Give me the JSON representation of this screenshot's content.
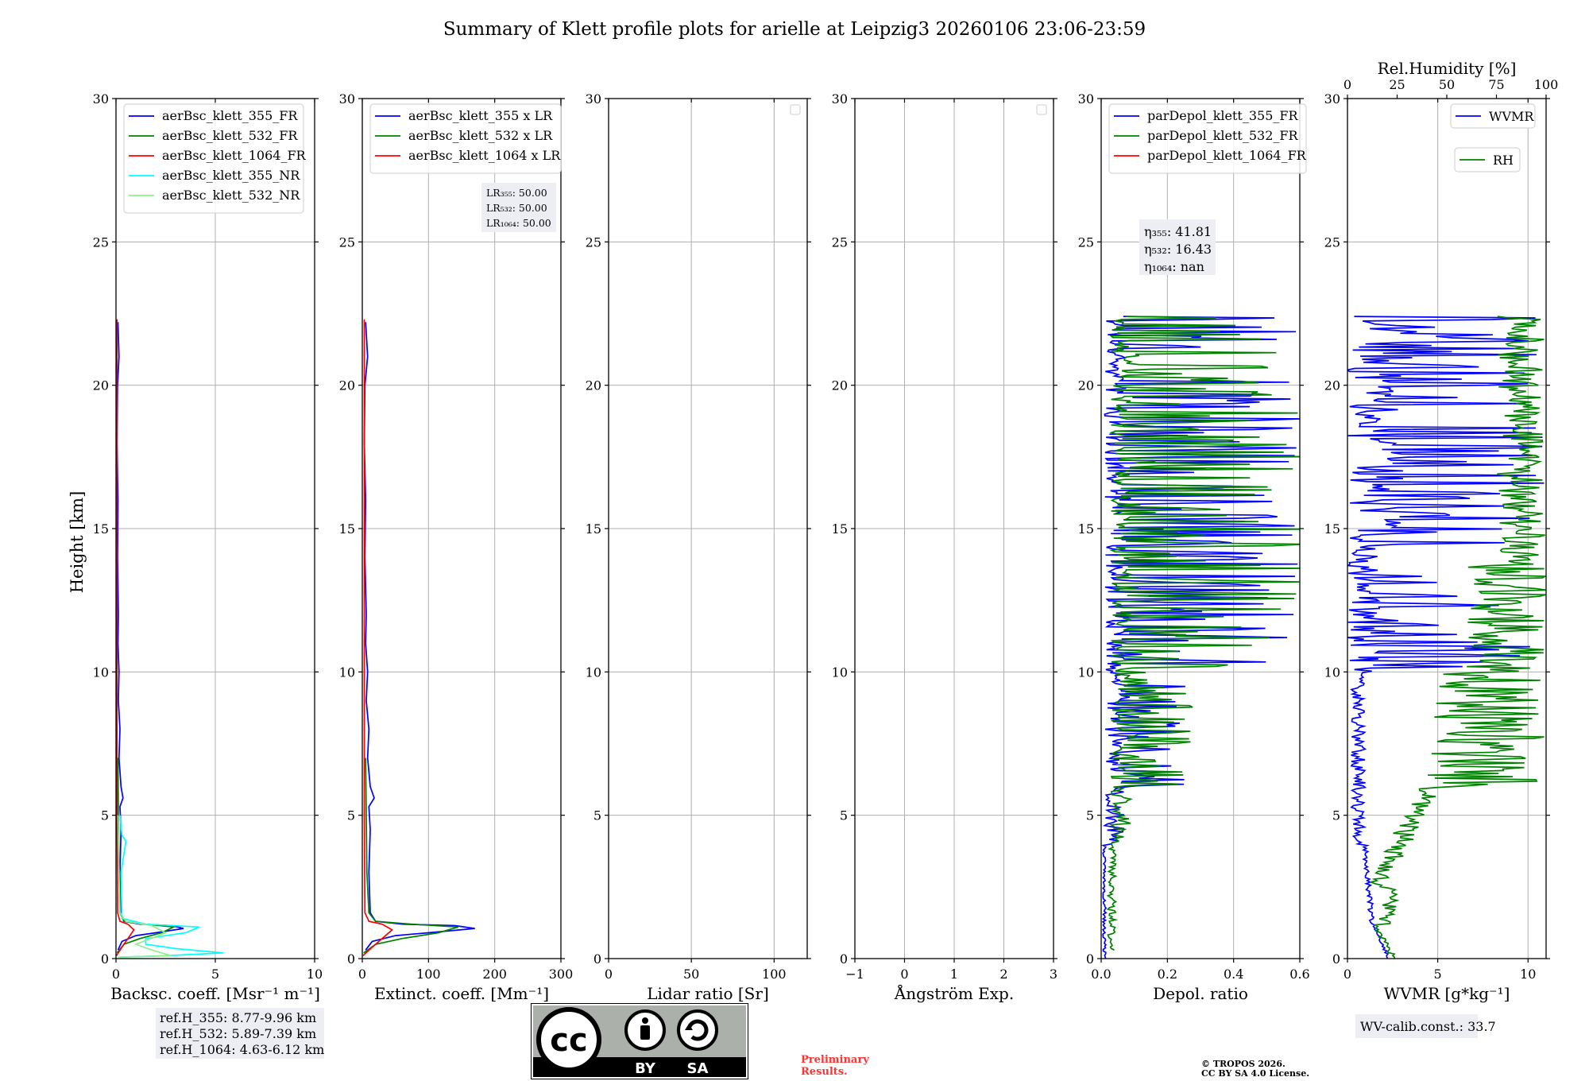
{
  "figure": {
    "title": "Summary of Klett profile plots for arielle at Leipzig3 20260106 23:06-23:59",
    "ylabel": "Height [km]",
    "preliminary_line1": "Preliminary",
    "preliminary_line2": "Results.",
    "copyright_line1": "© TROPOS 2026.",
    "copyright_line2": "CC BY SA 4.0 License.",
    "license_by": "BY",
    "license_sa": "SA",
    "license_cc": "cc",
    "colors": {
      "blue": "#0000ff",
      "green": "#008000",
      "red": "#ff0000",
      "cyan": "#00ffff",
      "lightgreen": "#90ee90",
      "grid": "#b0b0b0",
      "prelim": "#ff3333"
    }
  },
  "chart_data": [
    {
      "type": "line",
      "id": "bsc",
      "xlabel": "Backsc. coeff. [Msr⁻¹ m⁻¹]",
      "ylabel": "Height [km]",
      "xlim": [
        0,
        10
      ],
      "ylim": [
        0,
        30
      ],
      "xticks": [
        0,
        5,
        10
      ],
      "yticks": [
        0,
        5,
        10,
        15,
        20,
        25,
        30
      ],
      "legend": [
        "aerBsc_klett_355_FR",
        "aerBsc_klett_532_FR",
        "aerBsc_klett_1064_FR",
        "aerBsc_klett_355_NR",
        "aerBsc_klett_532_NR"
      ],
      "reference_heights": [
        "ref.H_355: 8.77-9.96 km",
        "ref.H_532: 5.89-7.39 km",
        "ref.H_1064: 4.63-6.12 km"
      ],
      "series": [
        {
          "name": "aerBsc_klett_355_FR",
          "color": "blue",
          "points": [
            [
              0.1,
              0.3
            ],
            [
              0.3,
              0.6
            ],
            [
              1.0,
              0.8
            ],
            [
              2.0,
              0.9
            ],
            [
              3.4,
              1.05
            ],
            [
              2.8,
              1.15
            ],
            [
              1.2,
              1.2
            ],
            [
              0.4,
              1.3
            ],
            [
              0.25,
              1.6
            ],
            [
              0.2,
              3
            ],
            [
              0.25,
              4.5
            ],
            [
              0.2,
              5.3
            ],
            [
              0.35,
              5.6
            ],
            [
              0.25,
              6
            ],
            [
              0.15,
              7
            ],
            [
              0.2,
              8
            ],
            [
              0.12,
              9
            ],
            [
              0.15,
              10
            ],
            [
              0.1,
              11
            ],
            [
              0.12,
              12
            ],
            [
              0.08,
              14
            ],
            [
              0.1,
              16
            ],
            [
              0.05,
              18
            ],
            [
              0.08,
              20
            ],
            [
              0.15,
              21
            ],
            [
              0.1,
              22.2
            ]
          ]
        },
        {
          "name": "aerBsc_klett_532_FR",
          "color": "green",
          "points": [
            [
              0.05,
              0.2
            ],
            [
              0.4,
              0.5
            ],
            [
              1.2,
              0.7
            ],
            [
              2.3,
              0.9
            ],
            [
              2.9,
              1.1
            ],
            [
              1.5,
              1.2
            ],
            [
              0.4,
              1.3
            ],
            [
              0.2,
              1.6
            ],
            [
              0.15,
              3
            ],
            [
              0.12,
              5
            ],
            [
              0.1,
              7
            ]
          ]
        },
        {
          "name": "aerBsc_klett_1064_FR",
          "color": "red",
          "points": [
            [
              0.02,
              0.1
            ],
            [
              0.3,
              0.4
            ],
            [
              0.6,
              0.7
            ],
            [
              0.9,
              1.0
            ],
            [
              0.6,
              1.2
            ],
            [
              0.2,
              1.3
            ],
            [
              0.08,
              1.6
            ],
            [
              0.05,
              5
            ],
            [
              0.05,
              10
            ],
            [
              0.05,
              15
            ],
            [
              0.05,
              20
            ],
            [
              0.05,
              22.3
            ]
          ]
        },
        {
          "name": "aerBsc_klett_355_NR",
          "color": "cyan",
          "points": [
            [
              0.2,
              0.05
            ],
            [
              2.5,
              0.1
            ],
            [
              5.4,
              0.2
            ],
            [
              3.0,
              0.35
            ],
            [
              1.5,
              0.5
            ],
            [
              1.5,
              0.7
            ],
            [
              3.5,
              0.9
            ],
            [
              4.2,
              1.1
            ],
            [
              1.5,
              1.2
            ],
            [
              0.3,
              1.4
            ],
            [
              0.25,
              3
            ],
            [
              0.5,
              4.1
            ],
            [
              0.3,
              4.3
            ],
            [
              0.2,
              5
            ]
          ]
        },
        {
          "name": "aerBsc_klett_532_NR",
          "color": "lightgreen",
          "points": [
            [
              0.1,
              0.05
            ],
            [
              2.8,
              0.1
            ],
            [
              1.8,
              0.3
            ],
            [
              1.0,
              0.5
            ],
            [
              2.5,
              0.9
            ],
            [
              1.8,
              1.15
            ],
            [
              0.5,
              1.3
            ],
            [
              0.2,
              1.6
            ],
            [
              0.15,
              3
            ],
            [
              0.1,
              5
            ]
          ]
        }
      ]
    },
    {
      "type": "line",
      "id": "ext",
      "xlabel": "Extinct. coeff. [Mm⁻¹]",
      "xlim": [
        0,
        300
      ],
      "ylim": [
        0,
        30
      ],
      "xticks": [
        0,
        100,
        200,
        300
      ],
      "yticks": [
        0,
        5,
        10,
        15,
        20,
        25,
        30
      ],
      "legend": [
        "aerBsc_klett_355 x LR",
        "aerBsc_klett_532 x LR",
        "aerBsc_klett_1064 x LR"
      ],
      "lidar_ratio_box": [
        "LR₃₅₅: 50.00",
        "LR₅₃₂: 50.00",
        "LR₁₀₆₄: 50.00"
      ],
      "series": [
        {
          "name": "aerBsc_klett_355 x LR",
          "color": "blue",
          "points": [
            [
              5,
              0.3
            ],
            [
              15,
              0.6
            ],
            [
              50,
              0.8
            ],
            [
              100,
              0.9
            ],
            [
              170,
              1.05
            ],
            [
              140,
              1.15
            ],
            [
              60,
              1.2
            ],
            [
              20,
              1.3
            ],
            [
              12,
              1.6
            ],
            [
              10,
              3
            ],
            [
              12,
              4.5
            ],
            [
              10,
              5.3
            ],
            [
              18,
              5.6
            ],
            [
              12,
              6
            ],
            [
              8,
              7
            ],
            [
              10,
              8
            ],
            [
              6,
              9
            ],
            [
              8,
              10
            ],
            [
              5,
              11
            ],
            [
              6,
              12
            ],
            [
              4,
              14
            ],
            [
              5,
              16
            ],
            [
              3,
              18
            ],
            [
              4,
              20
            ],
            [
              8,
              21
            ],
            [
              5,
              22.2
            ]
          ]
        },
        {
          "name": "aerBsc_klett_532 x LR",
          "color": "green",
          "points": [
            [
              2,
              0.2
            ],
            [
              20,
              0.5
            ],
            [
              60,
              0.7
            ],
            [
              115,
              0.9
            ],
            [
              145,
              1.1
            ],
            [
              75,
              1.2
            ],
            [
              20,
              1.3
            ],
            [
              10,
              1.6
            ],
            [
              7,
              3
            ],
            [
              6,
              5
            ],
            [
              5,
              7
            ]
          ]
        },
        {
          "name": "aerBsc_klett_1064 x LR",
          "color": "red",
          "points": [
            [
              1,
              0.1
            ],
            [
              15,
              0.4
            ],
            [
              30,
              0.7
            ],
            [
              45,
              1.0
            ],
            [
              30,
              1.2
            ],
            [
              10,
              1.3
            ],
            [
              4,
              1.6
            ],
            [
              3,
              5
            ],
            [
              3,
              10
            ],
            [
              3,
              15
            ],
            [
              3,
              20
            ],
            [
              3,
              22.3
            ]
          ]
        }
      ]
    },
    {
      "type": "line",
      "id": "lr",
      "xlabel": "Lidar ratio [Sr]",
      "xlim": [
        0,
        120
      ],
      "ylim": [
        0,
        30
      ],
      "xticks": [
        0,
        50,
        100
      ],
      "yticks": [
        0,
        5,
        10,
        15,
        20,
        25,
        30
      ],
      "series": []
    },
    {
      "type": "line",
      "id": "ang",
      "xlabel": "Ångström Exp.",
      "xlim": [
        -1,
        3
      ],
      "ylim": [
        0,
        30
      ],
      "xticks": [
        -1,
        0,
        1,
        2,
        3
      ],
      "yticks": [
        0,
        5,
        10,
        15,
        20,
        25,
        30
      ],
      "series": []
    },
    {
      "type": "line",
      "id": "depol",
      "xlabel": "Depol. ratio",
      "xlim": [
        0,
        0.6
      ],
      "ylim": [
        0,
        30
      ],
      "xticks": [
        0,
        0.2,
        0.4,
        0.6
      ],
      "xticklabels": [
        "0.0",
        "0.2",
        "0.4",
        "0.6"
      ],
      "yticks": [
        0,
        5,
        10,
        15,
        20,
        25,
        30
      ],
      "legend": [
        "parDepol_klett_355_FR",
        "parDepol_klett_532_FR",
        "parDepol_klett_1064_FR"
      ],
      "eta_box": [
        "η₃₅₅: 41.81",
        "η₅₃₂: 16.43",
        "η₁₀₆₄: nan"
      ],
      "series": [
        {
          "name": "parDepol_klett_355_FR",
          "color": "blue",
          "noisy": true,
          "y_start": 0.0,
          "y_end": 22.4
        },
        {
          "name": "parDepol_klett_532_FR",
          "color": "green",
          "noisy": true,
          "y_start": 0.3,
          "y_end": 22.4
        }
      ]
    },
    {
      "type": "line",
      "id": "wv",
      "xlabel": "WVMR [g*kg⁻¹]",
      "x2label": "Rel.Humidity [%]",
      "xlim": [
        0,
        11
      ],
      "x2lim": [
        0,
        100
      ],
      "ylim": [
        0,
        30
      ],
      "xticks": [
        0,
        5,
        10
      ],
      "x2ticks": [
        0,
        25,
        50,
        75,
        100
      ],
      "yticks": [
        0,
        5,
        10,
        15,
        20,
        25,
        30
      ],
      "legend": [
        "WVMR",
        "RH"
      ],
      "calib_box": "WV-calib.const.: 33.7",
      "series": [
        {
          "name": "WVMR",
          "color": "blue",
          "noisy": true,
          "y_start": 0.0,
          "y_end": 22.4
        },
        {
          "name": "RH",
          "color": "green",
          "noisy": true,
          "y_start": 0.0,
          "y_end": 22.4
        }
      ]
    }
  ]
}
